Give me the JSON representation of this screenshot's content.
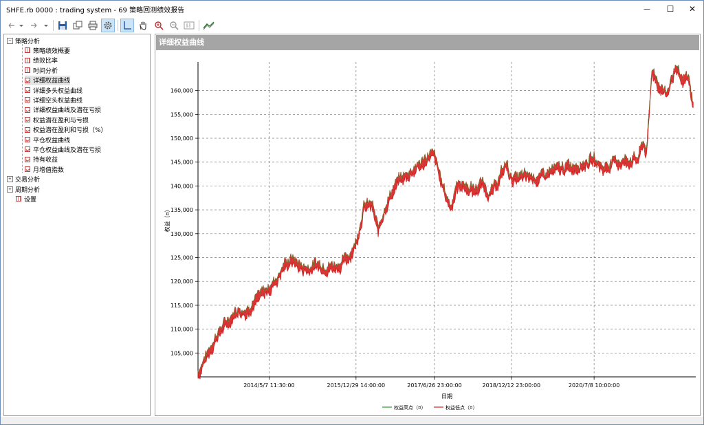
{
  "window": {
    "title": "SHFE.rb 0000 : trading system - 69 策略回测绩效报告",
    "minimize": "—",
    "maximize": "☐",
    "close": "✕"
  },
  "toolbar": {
    "icons": [
      "back-arrow-icon",
      "dropdown-icon",
      "forward-arrow-icon",
      "dropdown-icon",
      "save-icon",
      "copy-icon",
      "print-icon",
      "settings-icon",
      "crosshair-icon",
      "hand-pan-icon",
      "zoom-in-icon",
      "zoom-out-icon",
      "zoom-reset-icon",
      "chart-icon"
    ]
  },
  "tree": {
    "groups": [
      {
        "label": "策略分析",
        "expanded": true,
        "items": [
          {
            "label": "策略绩效概要",
            "icon": "table-icon"
          },
          {
            "label": "绩效比率",
            "icon": "table-icon"
          },
          {
            "label": "时间分析",
            "icon": "table-icon"
          },
          {
            "label": "详细权益曲线",
            "icon": "chart-icon",
            "selected": true
          },
          {
            "label": "详细多头权益曲线",
            "icon": "chart-icon"
          },
          {
            "label": "详细空头权益曲线",
            "icon": "chart-icon"
          },
          {
            "label": "详细权益曲线及潜在亏损",
            "icon": "chart-icon"
          },
          {
            "label": "权益潜在盈利与亏损",
            "icon": "chart-icon"
          },
          {
            "label": "权益潜在盈利和亏损（%）",
            "icon": "chart-icon"
          },
          {
            "label": "平仓权益曲线",
            "icon": "chart-icon"
          },
          {
            "label": "平仓权益曲线及潜在亏损",
            "icon": "chart-icon"
          },
          {
            "label": "持有收益",
            "icon": "chart-icon"
          },
          {
            "label": "月增值指数",
            "icon": "chart-icon"
          }
        ]
      },
      {
        "label": "交易分析",
        "expanded": false,
        "items": []
      },
      {
        "label": "周期分析",
        "expanded": false,
        "items": []
      }
    ],
    "settings": "设置",
    "expand_glyph": "+",
    "collapse_glyph": "−"
  },
  "panel": {
    "title": "详细权益曲线"
  },
  "chart_data": {
    "type": "line",
    "ylabel": "权益（¤）",
    "xlabel": "日期",
    "ylim": [
      100000,
      166000
    ],
    "yticks": [
      105000,
      110000,
      115000,
      120000,
      125000,
      130000,
      135000,
      140000,
      145000,
      150000,
      155000,
      160000
    ],
    "ytick_labels": [
      "105,000",
      "110,000",
      "115,000",
      "120,000",
      "125,000",
      "130,000",
      "135,000",
      "140,000",
      "145,000",
      "150,000",
      "155,000",
      "160,000"
    ],
    "xlim": [
      2013.0,
      2022.45
    ],
    "xticks": [
      2014.35,
      2016.0,
      2017.49,
      2018.95,
      2020.52
    ],
    "xtick_labels": [
      "2014/5/7 11:30:00",
      "2015/12/29 14:00:00",
      "2017/6/26 23:00:00",
      "2018/12/12 23:00:00",
      "2020/7/8 10:00:00"
    ],
    "grid": true,
    "legend": "bottom",
    "series": [
      {
        "name": "权益高点（¤）",
        "color": "#2c9a2c"
      },
      {
        "name": "权益低点（¤）",
        "color": "#d42020"
      }
    ],
    "x": [
      2013.0,
      2013.1,
      2013.22,
      2013.35,
      2013.45,
      2013.6,
      2013.75,
      2013.9,
      2014.05,
      2014.2,
      2014.35,
      2014.5,
      2014.65,
      2014.8,
      2014.95,
      2015.1,
      2015.25,
      2015.4,
      2015.55,
      2015.7,
      2015.85,
      2016.0,
      2016.15,
      2016.3,
      2016.42,
      2016.55,
      2016.68,
      2016.8,
      2016.95,
      2017.1,
      2017.25,
      2017.4,
      2017.49,
      2017.6,
      2017.7,
      2017.8,
      2017.9,
      2018.0,
      2018.1,
      2018.25,
      2018.4,
      2018.55,
      2018.7,
      2018.85,
      2018.95,
      2019.1,
      2019.3,
      2019.5,
      2019.7,
      2019.9,
      2020.1,
      2020.3,
      2020.52,
      2020.7,
      2020.9,
      2021.1,
      2021.25,
      2021.35,
      2021.45,
      2021.52,
      2021.62,
      2021.75,
      2021.9,
      2022.05,
      2022.2,
      2022.3,
      2022.4
    ],
    "values": [
      100500,
      103000,
      105500,
      108500,
      110000,
      112000,
      114000,
      113500,
      115500,
      117000,
      118500,
      120500,
      123500,
      124500,
      123000,
      122500,
      123500,
      123000,
      123000,
      123500,
      125000,
      128000,
      135500,
      136000,
      130500,
      135500,
      138500,
      141000,
      142000,
      143500,
      144500,
      146500,
      146000,
      141500,
      138000,
      135500,
      139500,
      140500,
      139500,
      139000,
      140500,
      138000,
      141000,
      144500,
      141500,
      141500,
      142000,
      141500,
      143000,
      143500,
      144000,
      144500,
      145500,
      143500,
      145000,
      145000,
      145500,
      145500,
      149000,
      147000,
      164500,
      161000,
      159000,
      164500,
      161500,
      163000,
      157000
    ]
  }
}
